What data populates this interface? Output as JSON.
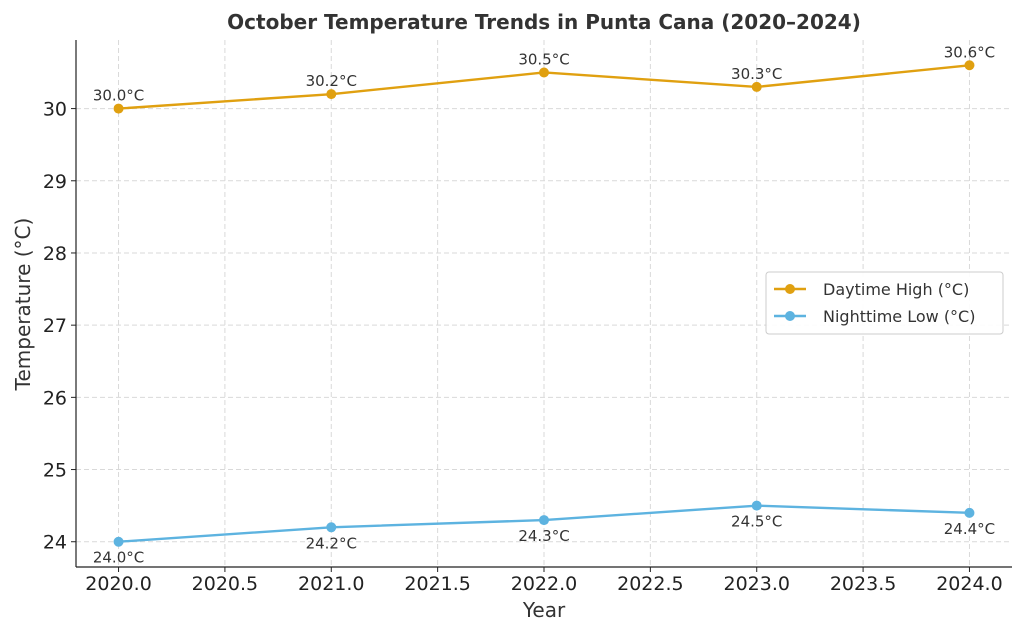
{
  "chart_data": {
    "type": "line",
    "title": "October Temperature Trends in Punta Cana (2020–2024)",
    "xlabel": "Year",
    "ylabel": "Temperature (°C)",
    "x": [
      2020,
      2021,
      2022,
      2023,
      2024
    ],
    "xlim": [
      2019.8,
      2024.2
    ],
    "ylim": [
      23.65,
      30.95
    ],
    "xticks": [
      "2020.0",
      "2020.5",
      "2021.0",
      "2021.5",
      "2022.0",
      "2022.5",
      "2023.0",
      "2023.5",
      "2024.0"
    ],
    "yticks": [
      "24",
      "25",
      "26",
      "27",
      "28",
      "29",
      "30"
    ],
    "grid": true,
    "legend_position": "center-right",
    "series": [
      {
        "name": "Daytime High (°C)",
        "color": "#E0A010",
        "values": [
          30.0,
          30.2,
          30.5,
          30.3,
          30.6
        ],
        "labels": [
          "30.0°C",
          "30.2°C",
          "30.5°C",
          "30.3°C",
          "30.6°C"
        ]
      },
      {
        "name": "Nighttime Low (°C)",
        "color": "#5DB3E0",
        "values": [
          24.0,
          24.2,
          24.3,
          24.5,
          24.4
        ],
        "labels": [
          "24.0°C",
          "24.2°C",
          "24.3°C",
          "24.5°C",
          "24.4°C"
        ]
      }
    ]
  }
}
